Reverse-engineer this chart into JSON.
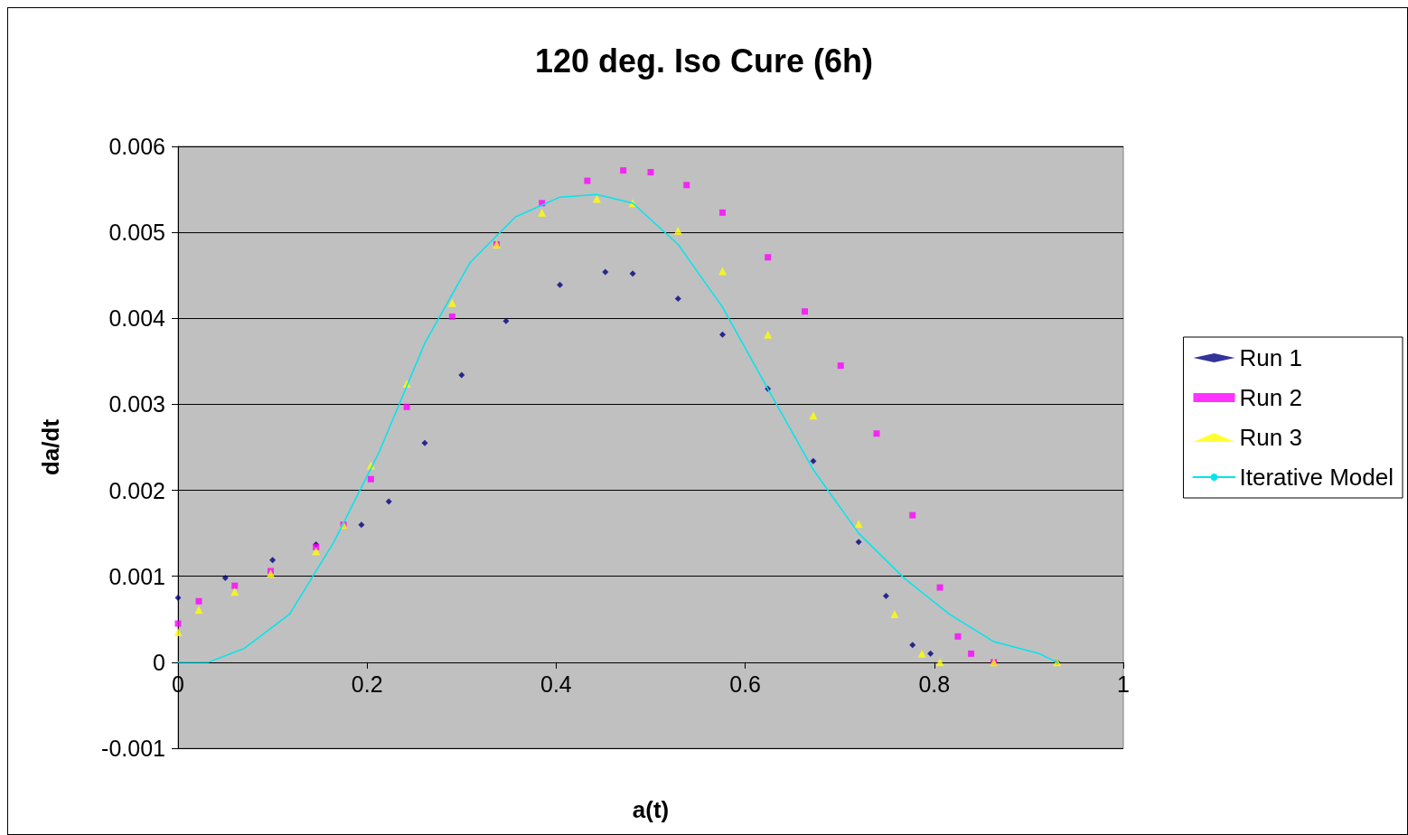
{
  "chart_data": {
    "type": "scatter",
    "title": "120 deg. Iso Cure (6h)",
    "xlabel": "a(t)",
    "ylabel": "da/dt",
    "xlim": [
      0,
      1
    ],
    "xticks": [
      0,
      0.2,
      0.4,
      0.6,
      0.8,
      1
    ],
    "ylim": [
      -0.001,
      0.006
    ],
    "yticks": [
      -0.001,
      0,
      0.001,
      0.002,
      0.003,
      0.004,
      0.005,
      0.006
    ],
    "grid": "y",
    "legend": "right",
    "series": [
      {
        "name": "Run 1",
        "color": "#000080",
        "marker": "diamond",
        "x": [
          0,
          0.05,
          0.1,
          0.146,
          0.194,
          0.223,
          0.261,
          0.3,
          0.347,
          0.404,
          0.452,
          0.481,
          0.529,
          0.576,
          0.624,
          0.672,
          0.72,
          0.749,
          0.777,
          0.796,
          0.863,
          0.93
        ],
        "values": [
          0.00075,
          0.00098,
          0.00119,
          0.00137,
          0.0016,
          0.00187,
          0.00255,
          0.00334,
          0.00397,
          0.00439,
          0.00454,
          0.00452,
          0.00423,
          0.00381,
          0.00318,
          0.00234,
          0.0014,
          0.00077,
          0.0002,
          0.0001,
          0,
          0
        ]
      },
      {
        "name": "Run 2",
        "color": "#ff00ff",
        "marker": "square",
        "x": [
          0,
          0.022,
          0.06,
          0.098,
          0.146,
          0.175,
          0.204,
          0.242,
          0.29,
          0.337,
          0.385,
          0.433,
          0.471,
          0.5,
          0.538,
          0.576,
          0.624,
          0.663,
          0.701,
          0.739,
          0.777,
          0.806,
          0.825,
          0.839,
          0.863
        ],
        "values": [
          0.00045,
          0.00071,
          0.00089,
          0.00106,
          0.00134,
          0.0016,
          0.00213,
          0.00297,
          0.00402,
          0.00486,
          0.00534,
          0.0056,
          0.00572,
          0.0057,
          0.00555,
          0.00523,
          0.00471,
          0.00408,
          0.00345,
          0.00266,
          0.00171,
          0.00087,
          0.0003,
          0.0001,
          0
        ]
      },
      {
        "name": "Run 3",
        "color": "#ffff00",
        "marker": "triangle",
        "x": [
          0,
          0.022,
          0.06,
          0.098,
          0.146,
          0.175,
          0.204,
          0.242,
          0.29,
          0.337,
          0.385,
          0.443,
          0.481,
          0.529,
          0.576,
          0.624,
          0.672,
          0.72,
          0.758,
          0.787,
          0.806,
          0.863,
          0.93
        ],
        "values": [
          0.00035,
          0.00061,
          0.00082,
          0.00103,
          0.00129,
          0.0016,
          0.00229,
          0.00324,
          0.00418,
          0.00486,
          0.00523,
          0.00539,
          0.00534,
          0.00502,
          0.00455,
          0.00381,
          0.00287,
          0.00161,
          0.00056,
          0.0001,
          0,
          0,
          0
        ]
      },
      {
        "name": "Iterative Model",
        "type": "line",
        "color": "#00e5ee",
        "marker": "none",
        "x": [
          0,
          0.032,
          0.07,
          0.118,
          0.165,
          0.213,
          0.261,
          0.309,
          0.357,
          0.404,
          0.443,
          0.481,
          0.529,
          0.576,
          0.624,
          0.672,
          0.72,
          0.768,
          0.816,
          0.863,
          0.911,
          0.93
        ],
        "values": [
          0,
          0,
          0.00016,
          0.00056,
          0.0014,
          0.00245,
          0.00371,
          0.00465,
          0.00518,
          0.00541,
          0.00544,
          0.00534,
          0.00486,
          0.00413,
          0.00318,
          0.00224,
          0.0015,
          0.00098,
          0.00056,
          0.00024,
          0.0001,
          0
        ]
      }
    ]
  }
}
